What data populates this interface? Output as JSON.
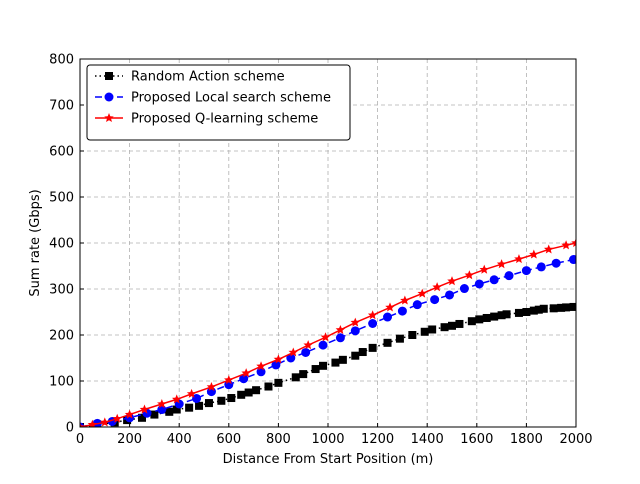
{
  "chart_data": {
    "type": "line",
    "title": "",
    "xlabel": "Distance From Start Position (m)",
    "ylabel": "Sum rate (Gbps)",
    "xlim": [
      0,
      2000
    ],
    "ylim": [
      0,
      800
    ],
    "xticks": [
      0,
      200,
      400,
      600,
      800,
      1000,
      1200,
      1400,
      1600,
      1800,
      2000
    ],
    "yticks": [
      0,
      100,
      200,
      300,
      400,
      500,
      600,
      700,
      800
    ],
    "grid": true,
    "grid_style": "dashed",
    "legend_position": "top-left",
    "series": [
      {
        "name": "Random Action scheme",
        "color": "#000000",
        "line_style": "dotted",
        "marker": "square",
        "points": [
          [
            0,
            0
          ],
          [
            70,
            5
          ],
          [
            140,
            10
          ],
          [
            190,
            15
          ],
          [
            250,
            20
          ],
          [
            300,
            27
          ],
          [
            360,
            33
          ],
          [
            390,
            38
          ],
          [
            440,
            42
          ],
          [
            480,
            46
          ],
          [
            520,
            52
          ],
          [
            570,
            57
          ],
          [
            610,
            63
          ],
          [
            650,
            70
          ],
          [
            680,
            75
          ],
          [
            710,
            80
          ],
          [
            760,
            88
          ],
          [
            800,
            96
          ],
          [
            870,
            108
          ],
          [
            900,
            115
          ],
          [
            950,
            126
          ],
          [
            980,
            133
          ],
          [
            1030,
            140
          ],
          [
            1060,
            146
          ],
          [
            1110,
            155
          ],
          [
            1140,
            163
          ],
          [
            1180,
            172
          ],
          [
            1240,
            183
          ],
          [
            1290,
            192
          ],
          [
            1340,
            200
          ],
          [
            1390,
            207
          ],
          [
            1420,
            212
          ],
          [
            1470,
            217
          ],
          [
            1500,
            220
          ],
          [
            1530,
            224
          ],
          [
            1580,
            230
          ],
          [
            1610,
            234
          ],
          [
            1640,
            237
          ],
          [
            1670,
            240
          ],
          [
            1700,
            243
          ],
          [
            1720,
            245
          ],
          [
            1770,
            248
          ],
          [
            1800,
            250
          ],
          [
            1830,
            253
          ],
          [
            1850,
            255
          ],
          [
            1870,
            257
          ],
          [
            1910,
            258
          ],
          [
            1940,
            259
          ],
          [
            1960,
            260
          ],
          [
            1990,
            261
          ]
        ]
      },
      {
        "name": "Proposed Local search scheme",
        "color": "#0000ff",
        "line_style": "dashed",
        "marker": "circle",
        "points": [
          [
            0,
            0
          ],
          [
            70,
            8
          ],
          [
            130,
            12
          ],
          [
            200,
            20
          ],
          [
            270,
            30
          ],
          [
            330,
            38
          ],
          [
            400,
            50
          ],
          [
            470,
            62
          ],
          [
            530,
            77
          ],
          [
            600,
            92
          ],
          [
            660,
            105
          ],
          [
            730,
            120
          ],
          [
            790,
            135
          ],
          [
            850,
            150
          ],
          [
            910,
            162
          ],
          [
            980,
            178
          ],
          [
            1050,
            194
          ],
          [
            1110,
            209
          ],
          [
            1180,
            225
          ],
          [
            1240,
            239
          ],
          [
            1300,
            252
          ],
          [
            1360,
            266
          ],
          [
            1430,
            277
          ],
          [
            1490,
            287
          ],
          [
            1550,
            301
          ],
          [
            1610,
            311
          ],
          [
            1670,
            320
          ],
          [
            1730,
            329
          ],
          [
            1800,
            340
          ],
          [
            1860,
            348
          ],
          [
            1920,
            356
          ],
          [
            1990,
            364
          ]
        ]
      },
      {
        "name": "Proposed Q-learning scheme",
        "color": "#ff0000",
        "line_style": "solid",
        "marker": "star",
        "points": [
          [
            0,
            0
          ],
          [
            50,
            5
          ],
          [
            100,
            10
          ],
          [
            150,
            18
          ],
          [
            200,
            27
          ],
          [
            260,
            38
          ],
          [
            330,
            50
          ],
          [
            390,
            60
          ],
          [
            450,
            72
          ],
          [
            530,
            87
          ],
          [
            600,
            102
          ],
          [
            670,
            117
          ],
          [
            730,
            132
          ],
          [
            800,
            147
          ],
          [
            860,
            162
          ],
          [
            920,
            178
          ],
          [
            990,
            195
          ],
          [
            1050,
            211
          ],
          [
            1110,
            227
          ],
          [
            1180,
            243
          ],
          [
            1250,
            260
          ],
          [
            1310,
            275
          ],
          [
            1380,
            290
          ],
          [
            1440,
            304
          ],
          [
            1500,
            317
          ],
          [
            1570,
            330
          ],
          [
            1630,
            342
          ],
          [
            1700,
            354
          ],
          [
            1770,
            365
          ],
          [
            1830,
            375
          ],
          [
            1890,
            386
          ],
          [
            1960,
            395
          ],
          [
            2000,
            400
          ]
        ]
      }
    ]
  }
}
